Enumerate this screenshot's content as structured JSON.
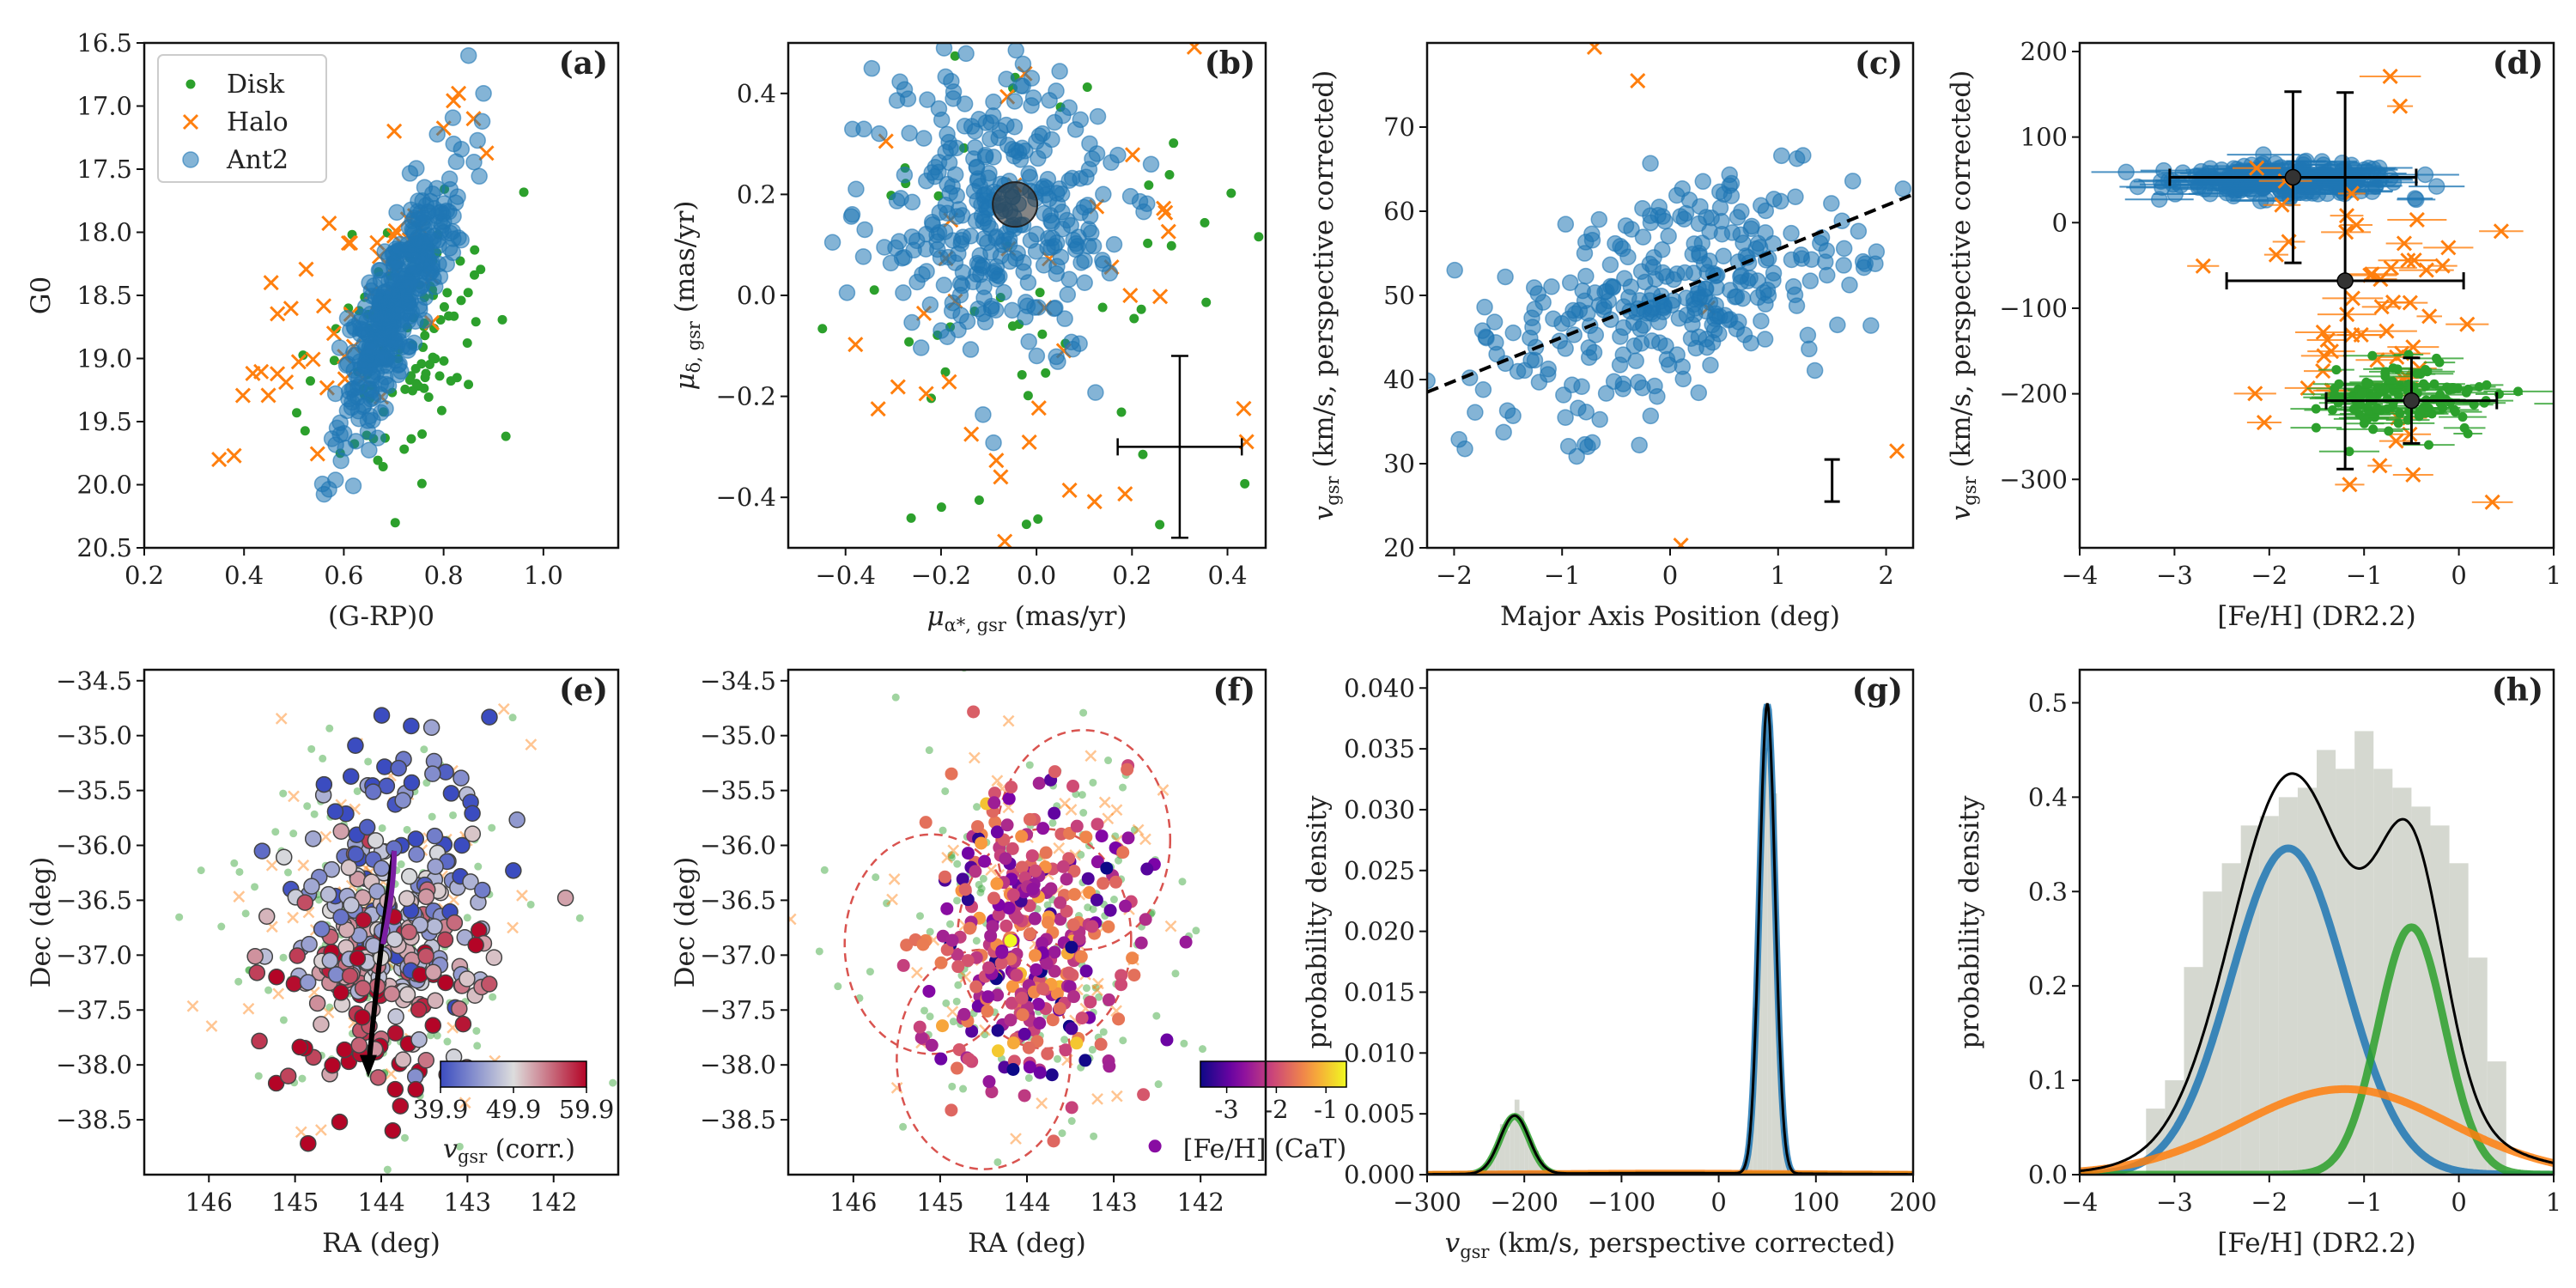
{
  "colors": {
    "disk": "#2ca02c",
    "halo": "#ff7f0e",
    "ant2": "#1f77b4",
    "hist": "#d5d8d0",
    "black": "#000000"
  },
  "chart_data": [
    {
      "id": "a",
      "panel_label": "(a)",
      "type": "scatter",
      "xlabel": "(G-RP)0",
      "ylabel": "G0",
      "xlim": [
        0.2,
        1.15
      ],
      "ylim": [
        16.5,
        20.5
      ],
      "y_inverted": true,
      "xticks": [
        0.2,
        0.4,
        0.6,
        0.8,
        1.0
      ],
      "xtick_labels": [
        "0.2",
        "0.4",
        "0.6",
        "0.8",
        "1.0"
      ],
      "yticks": [
        16.5,
        17.0,
        17.5,
        18.0,
        18.5,
        19.0,
        19.5,
        20.0,
        20.5
      ],
      "ytick_labels": [
        "16.5",
        "17.0",
        "17.5",
        "18.0",
        "18.5",
        "19.0",
        "19.5",
        "20.0",
        "20.5"
      ],
      "legend": [
        {
          "name": "Disk",
          "marker": "dot"
        },
        {
          "name": "Halo",
          "marker": "x"
        },
        {
          "name": "Ant2",
          "marker": "circle"
        }
      ],
      "series": [
        {
          "name": "Disk",
          "marker": "dot",
          "color": "#2ca02c",
          "gen": {
            "n": 110,
            "seed": 11,
            "x": [
              0.72,
              0.09
            ],
            "y": [
              18.9,
              0.5
            ],
            "rho": -0.4
          }
        },
        {
          "name": "Halo",
          "marker": "x",
          "color": "#ff7f0e",
          "gen": {
            "n": 45,
            "seed": 12,
            "x": [
              0.62,
              0.12
            ],
            "y": [
              18.5,
              0.6
            ],
            "rho": -0.6
          }
        },
        {
          "name": "Ant2",
          "marker": "circle",
          "color": "#1f77b4",
          "gen": {
            "n": 380,
            "seed": 13,
            "x": [
              0.7,
              0.06
            ],
            "y": [
              18.6,
              0.55
            ],
            "rho": -0.85
          }
        }
      ],
      "points_extra": [
        {
          "series": "Ant2",
          "x": [
            0.85,
            0.82,
            0.88
          ],
          "y": [
            16.6,
            17.3,
            16.9
          ]
        },
        {
          "series": "Halo",
          "x": [
            0.35,
            0.83,
            0.86
          ],
          "y": [
            19.8,
            16.9,
            17.1
          ]
        }
      ]
    },
    {
      "id": "b",
      "panel_label": "(b)",
      "type": "scatter",
      "xlabel": "μα*,gsr (mas/yr)",
      "ylabel": "μδ,gsr (mas/yr)",
      "xlim": [
        -0.52,
        0.48
      ],
      "ylim": [
        -0.5,
        0.5
      ],
      "xticks": [
        -0.4,
        -0.2,
        0.0,
        0.2,
        0.4
      ],
      "xtick_labels": [
        "−0.4",
        "−0.2",
        "0.0",
        "0.2",
        "0.4"
      ],
      "yticks": [
        -0.4,
        -0.2,
        0.0,
        0.2,
        0.4
      ],
      "ytick_labels": [
        "−0.4",
        "−0.2",
        "0.0",
        "0.2",
        "0.4"
      ],
      "series": [
        {
          "name": "Disk",
          "marker": "dot",
          "color": "#2ca02c",
          "gen": {
            "n": 55,
            "seed": 21,
            "x": [
              0,
              0.25
            ],
            "y": [
              0,
              0.3
            ],
            "rho": 0
          }
        },
        {
          "name": "Halo",
          "marker": "x",
          "color": "#ff7f0e",
          "gen": {
            "n": 45,
            "seed": 22,
            "x": [
              0,
              0.25
            ],
            "y": [
              0,
              0.3
            ],
            "rho": 0
          }
        },
        {
          "name": "Ant2",
          "marker": "circle",
          "color": "#1f77b4",
          "gen": {
            "n": 330,
            "seed": 23,
            "x": [
              -0.07,
              0.13
            ],
            "y": [
              0.16,
              0.14
            ],
            "rho": 0
          }
        }
      ],
      "big_marker": {
        "x": -0.045,
        "y": 0.18
      },
      "error_cross": {
        "x": 0.3,
        "y": -0.3,
        "dx": 0.13,
        "dy": 0.18
      }
    },
    {
      "id": "c",
      "panel_label": "(c)",
      "type": "scatter",
      "xlabel": "Major Axis Position (deg)",
      "ylabel": "vgsr (km/s, perspective corrected)",
      "xlim": [
        -2.25,
        2.25
      ],
      "ylim": [
        20,
        80
      ],
      "xticks": [
        -2,
        -1,
        0,
        1,
        2
      ],
      "xtick_labels": [
        "−2",
        "−1",
        "0",
        "1",
        "2"
      ],
      "yticks": [
        20,
        30,
        40,
        50,
        60,
        70
      ],
      "ytick_labels": [
        "20",
        "30",
        "40",
        "50",
        "60",
        "70"
      ],
      "series": [
        {
          "name": "Halo",
          "marker": "x",
          "color": "#ff7f0e",
          "points": [
            [
              -0.7,
              79.5
            ],
            [
              -0.3,
              75.5
            ],
            [
              0.1,
              20.3
            ],
            [
              2.1,
              31.5
            ],
            [
              0.35,
              48.5
            ]
          ]
        },
        {
          "name": "Ant2",
          "marker": "circle",
          "color": "#1f77b4",
          "gen": {
            "n": 320,
            "seed": 31,
            "x": [
              0,
              0.85
            ],
            "y": [
              49.5,
              7.5
            ],
            "rho": 0.55
          }
        }
      ],
      "fit_line": {
        "x": [
          -2.25,
          2.25
        ],
        "y": [
          38.5,
          62
        ]
      },
      "error_bar": {
        "x": 1.5,
        "y": 28,
        "dy": 2.5
      }
    },
    {
      "id": "d",
      "panel_label": "(d)",
      "type": "scatter",
      "xlabel": "[Fe/H] (DR2.2)",
      "ylabel": "vgsr (km/s, perspective corrected)",
      "xlim": [
        -4,
        1
      ],
      "ylim": [
        -380,
        210
      ],
      "xticks": [
        -4,
        -3,
        -2,
        -1,
        0,
        1
      ],
      "xtick_labels": [
        "−4",
        "−3",
        "−2",
        "−1",
        "0",
        "1"
      ],
      "yticks": [
        -300,
        -200,
        -100,
        0,
        100,
        200
      ],
      "ytick_labels": [
        "−300",
        "−200",
        "−100",
        "0",
        "100",
        "200"
      ],
      "series": [
        {
          "name": "Ant2",
          "marker": "circle",
          "color": "#1f77b4",
          "gen": {
            "n": 260,
            "seed": 41,
            "x": [
              -1.8,
              0.6
            ],
            "y": [
              50,
              9
            ],
            "rho": 0
          },
          "xerr": 0.3
        },
        {
          "name": "Halo",
          "marker": "x",
          "color": "#ff7f0e",
          "gen": {
            "n": 60,
            "seed": 42,
            "x": [
              -1.1,
              0.7
            ],
            "y": [
              -110,
              100
            ],
            "rho": 0
          },
          "xerr": 0.25
        },
        {
          "name": "Disk",
          "marker": "dot",
          "color": "#2ca02c",
          "gen": {
            "n": 120,
            "seed": 43,
            "x": [
              -0.6,
              0.5
            ],
            "y": [
              -205,
              20
            ],
            "rho": 0
          },
          "xerr": 0.3
        }
      ],
      "mean_markers": [
        {
          "x": -1.75,
          "y": 53,
          "dx": 1.3,
          "dy": 100
        },
        {
          "x": -1.2,
          "y": -68,
          "dx": 1.25,
          "dy": 220
        },
        {
          "x": -0.5,
          "y": -208,
          "dx": 0.9,
          "dy": 50
        }
      ]
    },
    {
      "id": "e",
      "panel_label": "(e)",
      "type": "scatter",
      "xlabel": "RA (deg)",
      "ylabel": "Dec (deg)",
      "xlim": [
        146.75,
        141.25
      ],
      "ylim": [
        -39,
        -34.4
      ],
      "xticks": [
        146,
        145,
        144,
        143,
        142
      ],
      "xtick_labels": [
        "146",
        "145",
        "144",
        "143",
        "142"
      ],
      "yticks": [
        -38.5,
        -38.0,
        -37.5,
        -37.0,
        -36.5,
        -36.0,
        -35.5,
        -35.0,
        -34.5
      ],
      "ytick_labels": [
        "−38.5",
        "−38.0",
        "−37.5",
        "−37.0",
        "−36.5",
        "−36.0",
        "−35.5",
        "−35.0",
        "−34.5"
      ],
      "colorbar": {
        "label": "vgsr (corr.)",
        "ticks": [
          "39.9",
          "49.9",
          "59.9"
        ],
        "cmap": "coolwarm"
      },
      "arrow": {
        "from": [
          143.85,
          -36.05
        ],
        "to": [
          144.15,
          -38.05
        ]
      }
    },
    {
      "id": "f",
      "panel_label": "(f)",
      "type": "scatter",
      "xlabel": "RA (deg)",
      "ylabel": "Dec (deg)",
      "xlim": [
        146.75,
        141.25
      ],
      "ylim": [
        -39,
        -34.4
      ],
      "xticks": [
        146,
        145,
        144,
        143,
        142
      ],
      "xtick_labels": [
        "146",
        "145",
        "144",
        "143",
        "142"
      ],
      "yticks": [
        -38.5,
        -38.0,
        -37.5,
        -37.0,
        -36.5,
        -36.0,
        -35.5,
        -35.0,
        -34.5
      ],
      "ytick_labels": [
        "−38.5",
        "−38.0",
        "−37.5",
        "−37.0",
        "−36.5",
        "−36.0",
        "−35.5",
        "−35.0",
        "−34.5"
      ],
      "colorbar": {
        "label": "[Fe/H] (CaT)",
        "ticks": [
          "-3",
          "-2",
          "-1"
        ],
        "cmap": "plasma"
      },
      "circles": [
        {
          "ra": 143.35,
          "dec": -35.95,
          "r": 1.0
        },
        {
          "ra": 145.1,
          "dec": -36.9,
          "r": 1.0
        },
        {
          "ra": 143.8,
          "dec": -36.85,
          "r": 1.0
        },
        {
          "ra": 144.5,
          "dec": -37.95,
          "r": 1.0
        }
      ]
    },
    {
      "id": "g",
      "panel_label": "(g)",
      "type": "line",
      "xlabel": "vgsr (km/s, perspective corrected)",
      "ylabel": "probability density",
      "xlim": [
        -300,
        200
      ],
      "ylim": [
        0,
        0.0415
      ],
      "xticks": [
        -300,
        -200,
        -100,
        0,
        100,
        200
      ],
      "xtick_labels": [
        "−300",
        "−200",
        "−100",
        "0",
        "100",
        "200"
      ],
      "yticks": [
        0,
        0.005,
        0.01,
        0.015,
        0.02,
        0.025,
        0.03,
        0.035,
        0.04
      ],
      "ytick_labels": [
        "0.000",
        "0.005",
        "0.010",
        "0.015",
        "0.020",
        "0.025",
        "0.030",
        "0.035",
        "0.040"
      ],
      "components": [
        {
          "name": "Ant2",
          "color": "#1f77b4",
          "weight": 0.775,
          "mu": 50,
          "sigma": 8
        },
        {
          "name": "Disk",
          "color": "#2ca02c",
          "weight": 0.18,
          "mu": -210,
          "sigma": 15
        },
        {
          "name": "Halo",
          "color": "#ff7f0e",
          "weight": 0.045,
          "mu": -50,
          "sigma": 150
        }
      ]
    },
    {
      "id": "h",
      "panel_label": "(h)",
      "type": "line",
      "xlabel": "[Fe/H] (DR2.2)",
      "ylabel": "probability density",
      "xlim": [
        -4,
        1
      ],
      "ylim": [
        0,
        0.535
      ],
      "xticks": [
        -4,
        -3,
        -2,
        -1,
        0,
        1
      ],
      "xtick_labels": [
        "−4",
        "−3",
        "−2",
        "−1",
        "0",
        "1"
      ],
      "yticks": [
        0,
        0.1,
        0.2,
        0.3,
        0.4,
        0.5
      ],
      "ytick_labels": [
        "0.0",
        "0.1",
        "0.2",
        "0.3",
        "0.4",
        "0.5"
      ],
      "hist": {
        "edges_start": -3.3,
        "width": 0.2,
        "heights": [
          0.07,
          0.1,
          0.22,
          0.3,
          0.33,
          0.37,
          0.38,
          0.4,
          0.41,
          0.45,
          0.43,
          0.47,
          0.43,
          0.41,
          0.39,
          0.37,
          0.33,
          0.23,
          0.12
        ]
      },
      "components": [
        {
          "name": "Ant2",
          "color": "#1f77b4",
          "weight": 0.52,
          "mu": -1.8,
          "sigma": 0.6
        },
        {
          "name": "Disk",
          "color": "#2ca02c",
          "weight": 0.23,
          "mu": -0.5,
          "sigma": 0.35
        },
        {
          "name": "Halo",
          "color": "#ff7f0e",
          "weight": 0.25,
          "mu": -1.2,
          "sigma": 1.1
        }
      ]
    }
  ]
}
